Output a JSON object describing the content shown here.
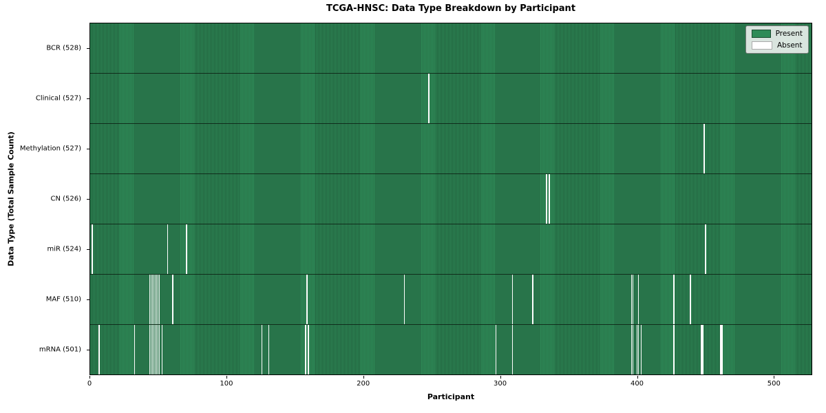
{
  "chart_data": {
    "type": "heatmap",
    "title": "TCGA-HNSC: Data Type Breakdown by Participant",
    "xlabel": "Participant",
    "ylabel": "Data Type (Total Sample Count)",
    "total_participants": 528,
    "x_ticks": [
      0,
      100,
      200,
      300,
      400,
      500
    ],
    "grid": false,
    "legend_position": "upper right",
    "legend": [
      {
        "label": "Present",
        "color": "#2e8b57"
      },
      {
        "label": "Absent",
        "color": "#ffffff"
      }
    ],
    "colors": {
      "present": "#2e8b57",
      "present_edge": "#215e3c",
      "absent": "#ffffff",
      "row_separator": "rgba(10,25,15,0.8)"
    },
    "rows": [
      {
        "data_type": "BCR",
        "label": "BCR (528)",
        "count": 528,
        "absent": []
      },
      {
        "data_type": "Clinical",
        "label": "Clinical (527)",
        "count": 527,
        "absent": [
          247
        ]
      },
      {
        "data_type": "Methylation",
        "label": "Methylation (527)",
        "count": 527,
        "absent": [
          448
        ]
      },
      {
        "data_type": "CN",
        "label": "CN (526)",
        "count": 526,
        "absent": [
          333,
          335
        ]
      },
      {
        "data_type": "miR",
        "label": "miR (524)",
        "count": 524,
        "absent": [
          1,
          56,
          70,
          449
        ]
      },
      {
        "data_type": "MAF",
        "label": "MAF (510)",
        "count": 510,
        "absent": [
          43,
          44,
          45,
          46,
          47,
          48,
          49,
          50,
          60,
          158,
          229,
          308,
          323,
          395,
          396,
          400,
          426,
          438
        ]
      },
      {
        "data_type": "mRNA",
        "label": "mRNA (501)",
        "count": 501,
        "absent": [
          6,
          32,
          43,
          44,
          45,
          46,
          47,
          48,
          49,
          50,
          52,
          125,
          130,
          157,
          159,
          296,
          308,
          395,
          396,
          399,
          400,
          402,
          426,
          446,
          447,
          460,
          461
        ]
      }
    ]
  }
}
